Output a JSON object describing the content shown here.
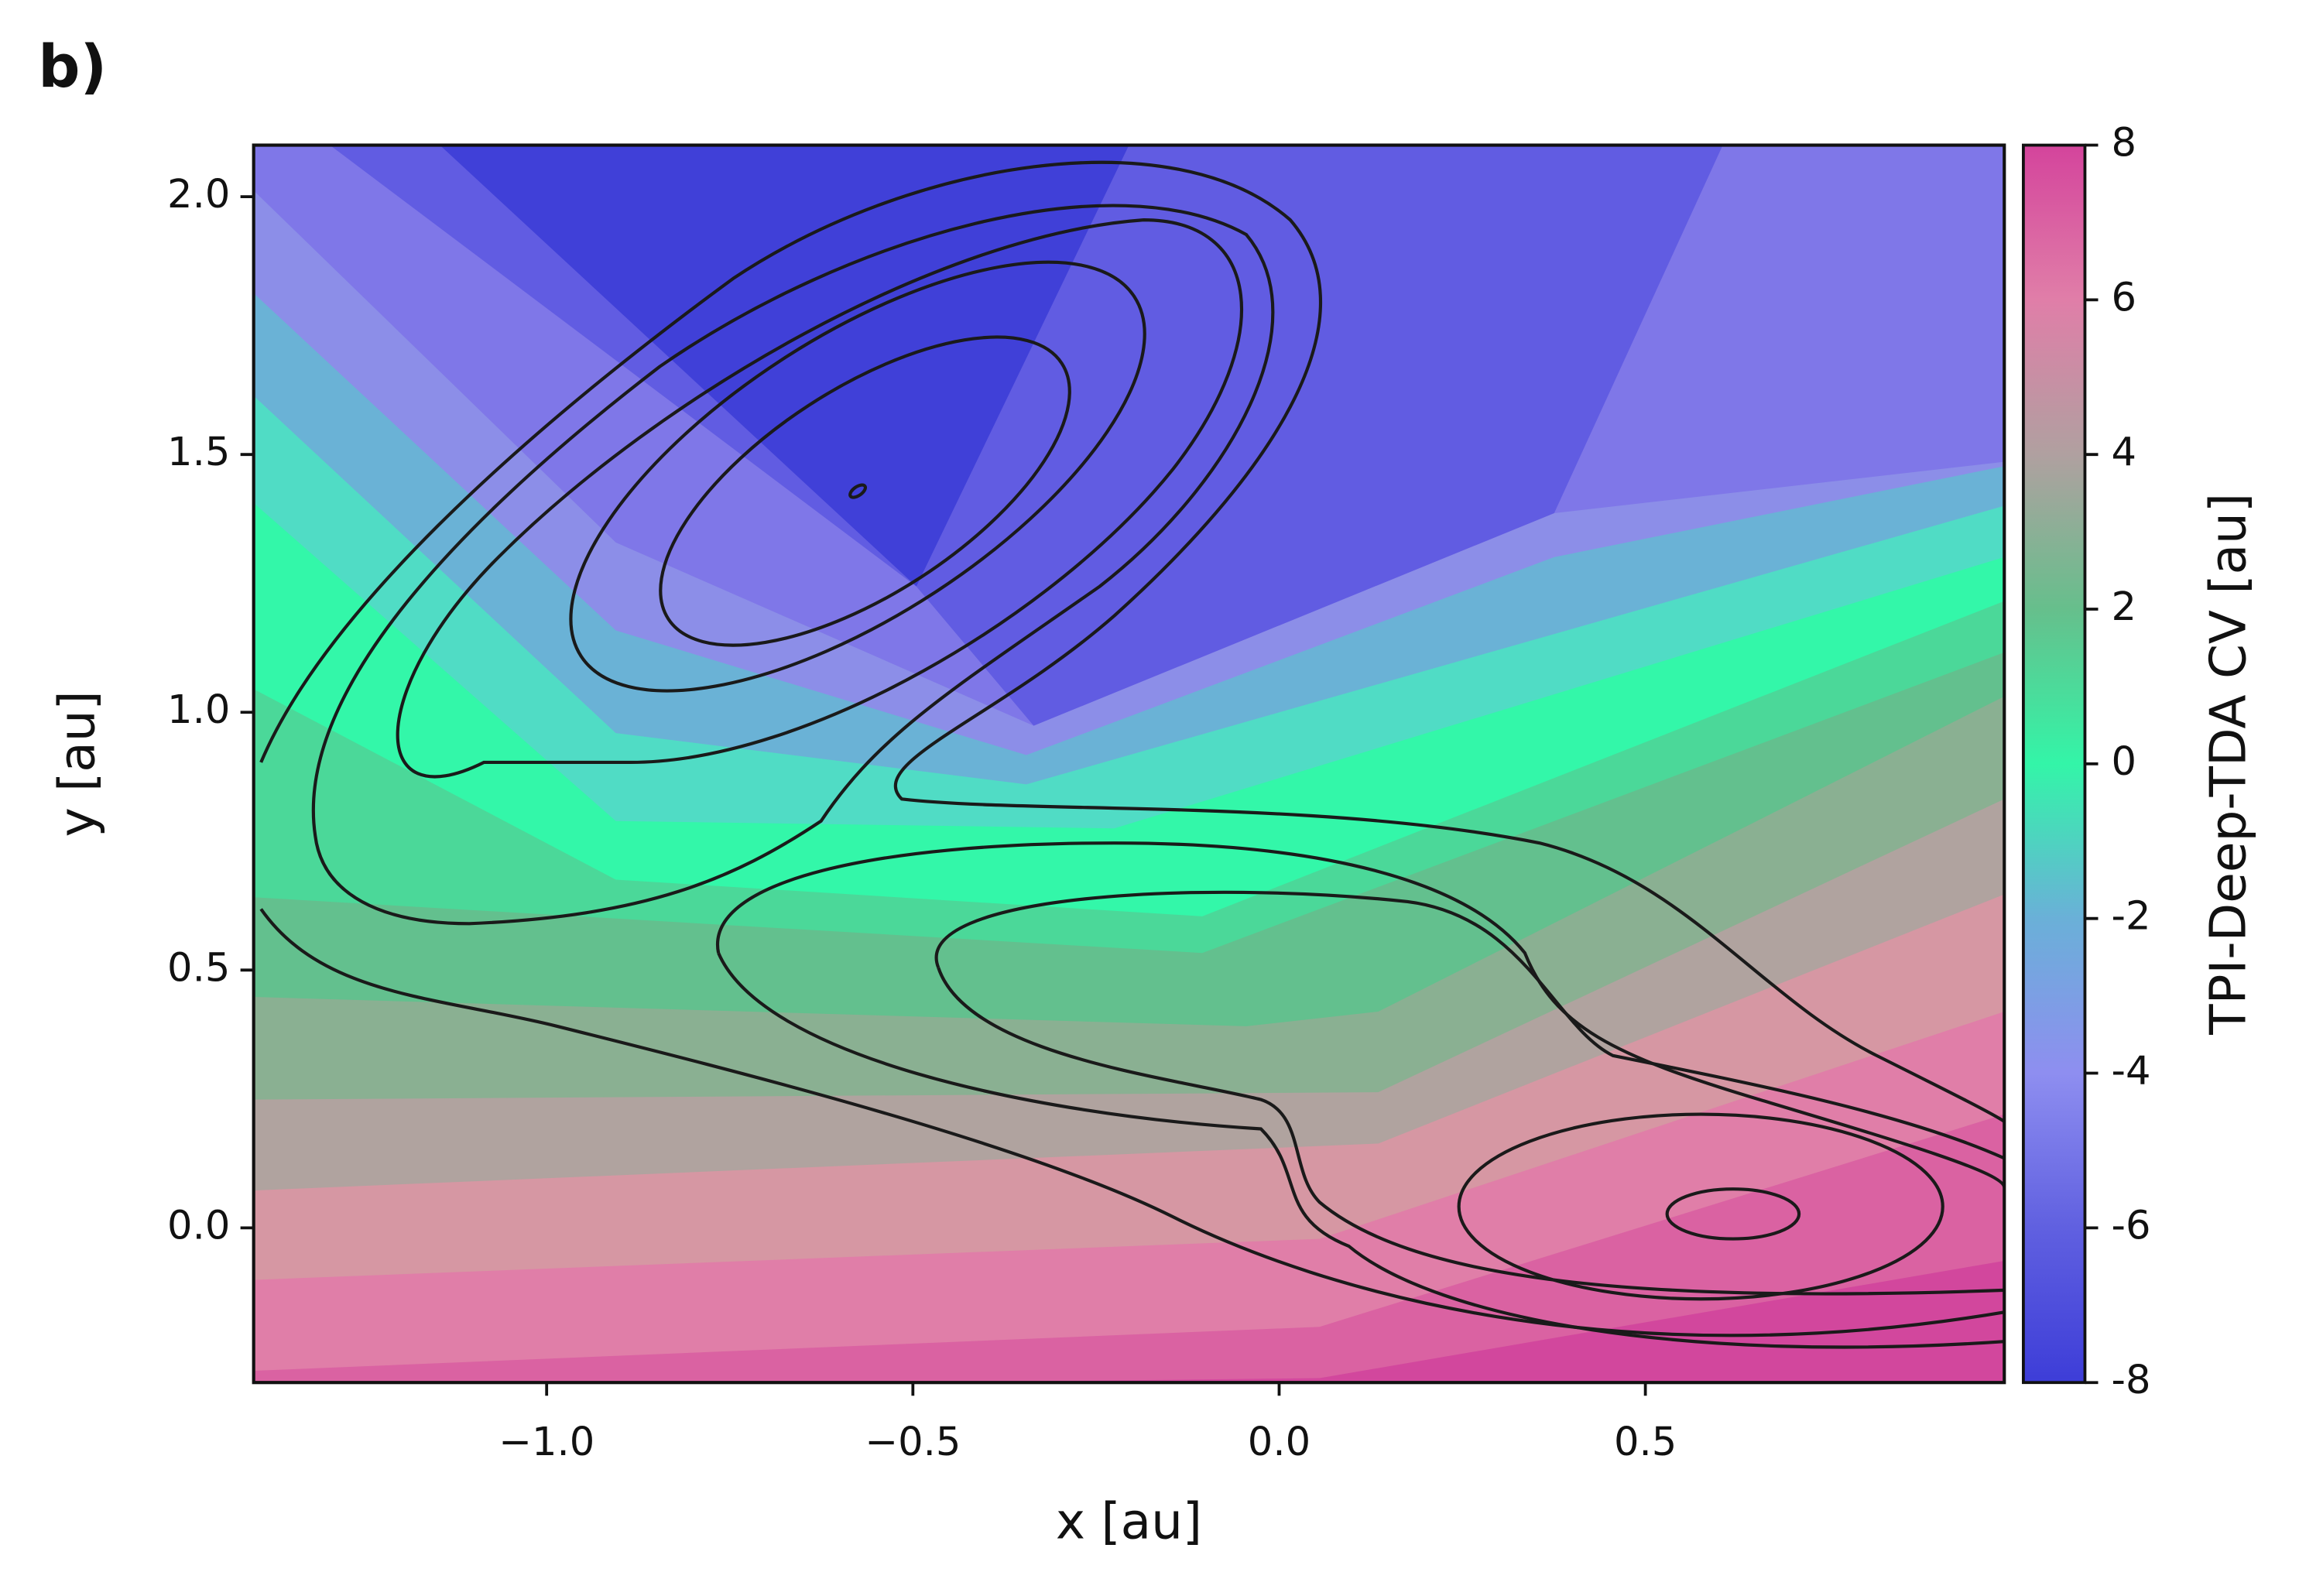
{
  "chart_data": {
    "type": "contour",
    "title": "b)",
    "x_label": "x [au]",
    "y_label": "y [au]",
    "xlim": [
      -1.4,
      0.99
    ],
    "ylim": [
      -0.3,
      2.1
    ],
    "xticks": [
      {
        "value": -1,
        "label": "−1.0"
      },
      {
        "value": -0.5,
        "label": "−0.5"
      },
      {
        "value": 0,
        "label": "0.0"
      },
      {
        "value": 0.5,
        "label": "0.5"
      }
    ],
    "yticks": [
      {
        "value": 0,
        "label": "0.0"
      },
      {
        "value": 0.5,
        "label": "0.5"
      },
      {
        "value": 1,
        "label": "1.0"
      },
      {
        "value": 1.5,
        "label": "1.5"
      },
      {
        "value": 2,
        "label": "2.0"
      }
    ],
    "colorbar": {
      "label": "TPI-Deep-TDA CV [au]",
      "lim": [
        -8,
        8
      ],
      "ticks": [
        -8,
        -6,
        -4,
        -2,
        0,
        2,
        4,
        6,
        8
      ],
      "colors": [
        "#3d3dd8",
        "#6060e0",
        "#8e8ef0",
        "#6ab0d8",
        "#33f5a8",
        "#66bf8c",
        "#b0a0a0",
        "#e07ea8",
        "#d4449c"
      ]
    }
  }
}
